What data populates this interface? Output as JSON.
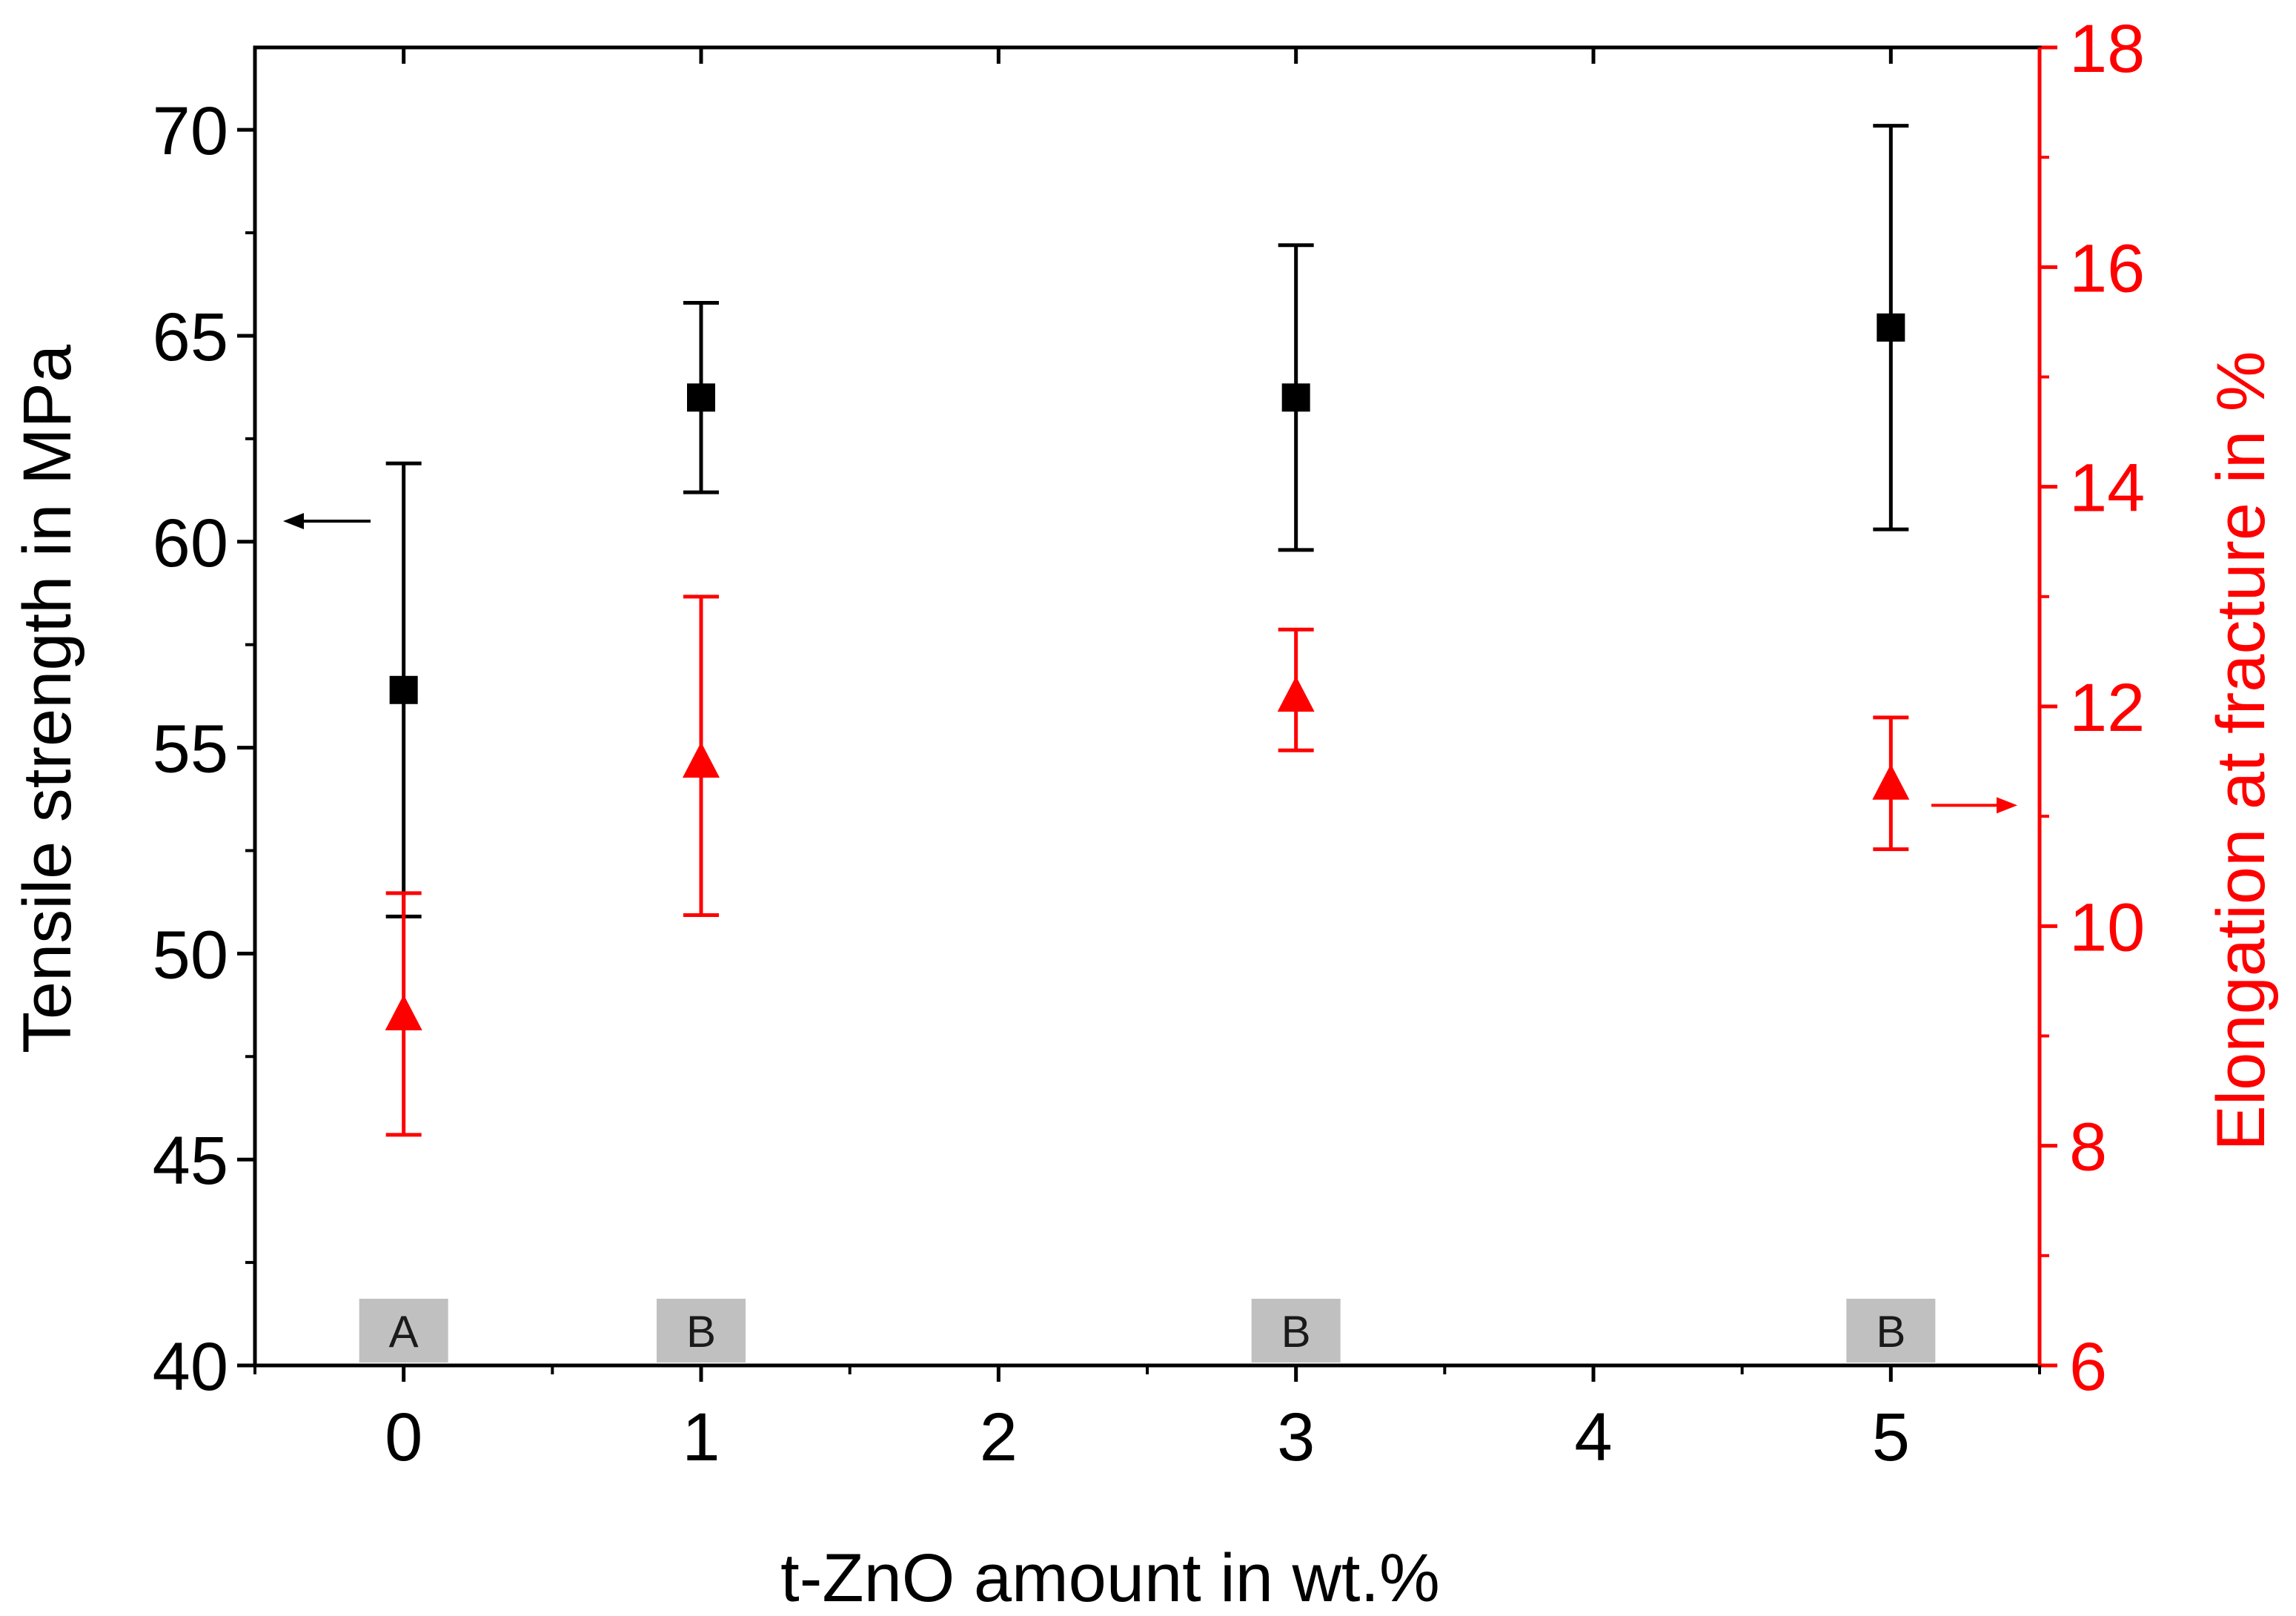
{
  "chart_data": {
    "type": "scatter",
    "x": [
      0,
      1,
      3,
      5
    ],
    "xlabel": "t-ZnO amount in wt.%",
    "xlim": [
      -0.5,
      5.5
    ],
    "xticks": [
      "0",
      "1",
      "2",
      "3",
      "4",
      "5"
    ],
    "ylabel_left": "Tensile strength in MPa",
    "ylim_left": [
      40,
      72
    ],
    "yticks_left": [
      "40",
      "45",
      "50",
      "55",
      "60",
      "65",
      "70"
    ],
    "ylabel_right": "Elongation at fracture in %",
    "ylim_right": [
      6,
      18
    ],
    "yticks_right": [
      "6",
      "8",
      "10",
      "12",
      "14",
      "16",
      "18"
    ],
    "series": [
      {
        "name": "Tensile strength",
        "axis": "left",
        "marker": "square",
        "color": "#000000",
        "values": [
          56.4,
          63.5,
          63.5,
          65.2
        ],
        "error_low": [
          50.9,
          61.2,
          59.8,
          60.3
        ],
        "error_high": [
          61.9,
          65.8,
          67.2,
          70.1
        ]
      },
      {
        "name": "Elongation at fracture",
        "axis": "right",
        "marker": "triangle",
        "color": "#ff0000",
        "values": [
          9.2,
          11.5,
          12.1,
          11.3
        ],
        "error_low": [
          8.1,
          10.1,
          11.6,
          10.7
        ],
        "error_high": [
          10.3,
          13.0,
          12.7,
          11.9
        ]
      }
    ],
    "group_labels": [
      {
        "x": 0,
        "text": "A"
      },
      {
        "x": 1,
        "text": "B"
      },
      {
        "x": 3,
        "text": "B"
      },
      {
        "x": 5,
        "text": "B"
      }
    ],
    "indicator_arrows": [
      {
        "series": "Tensile strength",
        "direction": "left"
      },
      {
        "series": "Elongation at fracture",
        "direction": "right"
      }
    ],
    "colors": {
      "left_axis": "#000000",
      "right_axis": "#ff0000",
      "group_box": "#c0c0c0"
    }
  }
}
